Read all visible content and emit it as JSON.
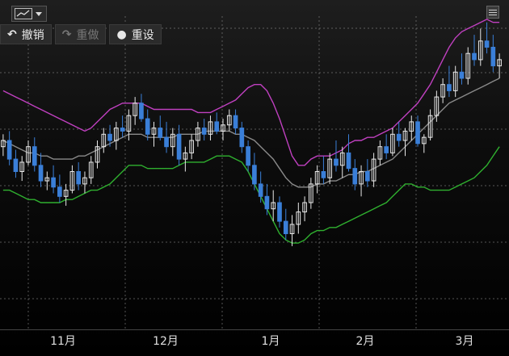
{
  "toolbar": {
    "chart_type_icon": "line-chart-icon",
    "undo_label": "撤销",
    "redo_label": "重做",
    "reset_label": "重设"
  },
  "chart_data": {
    "type": "candlestick",
    "x_tick_labels": [
      "11月",
      "12月",
      "1月",
      "2月",
      "3月"
    ],
    "grid": true,
    "indicators": [
      "Bollinger upper band",
      "Bollinger middle band",
      "Bollinger lower band"
    ],
    "colors": {
      "up_candle": "#e8e8e8",
      "down_candle": "#3a7fd8",
      "upper_band": "#c040c0",
      "middle_band": "#8a8a8a",
      "lower_band": "#2fb02f"
    },
    "price_range": [
      0,
      100
    ],
    "candles": [
      [
        58,
        62,
        55,
        60
      ],
      [
        60,
        63,
        52,
        54
      ],
      [
        54,
        57,
        48,
        50
      ],
      [
        50,
        55,
        47,
        53
      ],
      [
        53,
        60,
        52,
        58
      ],
      [
        58,
        61,
        50,
        52
      ],
      [
        52,
        56,
        45,
        47
      ],
      [
        47,
        50,
        44,
        48
      ],
      [
        48,
        52,
        43,
        45
      ],
      [
        45,
        49,
        40,
        42
      ],
      [
        42,
        46,
        39,
        44
      ],
      [
        44,
        52,
        43,
        50
      ],
      [
        50,
        53,
        44,
        46
      ],
      [
        46,
        50,
        43,
        48
      ],
      [
        48,
        55,
        46,
        53
      ],
      [
        53,
        60,
        51,
        58
      ],
      [
        58,
        64,
        56,
        62
      ],
      [
        62,
        65,
        58,
        60
      ],
      [
        60,
        66,
        57,
        64
      ],
      [
        64,
        68,
        61,
        63
      ],
      [
        63,
        70,
        60,
        68
      ],
      [
        68,
        74,
        65,
        72
      ],
      [
        72,
        75,
        66,
        67
      ],
      [
        67,
        70,
        60,
        62
      ],
      [
        62,
        66,
        58,
        64
      ],
      [
        64,
        68,
        60,
        61
      ],
      [
        61,
        66,
        56,
        58
      ],
      [
        58,
        64,
        55,
        62
      ],
      [
        62,
        65,
        52,
        54
      ],
      [
        54,
        58,
        50,
        56
      ],
      [
        56,
        62,
        54,
        60
      ],
      [
        60,
        66,
        58,
        64
      ],
      [
        64,
        67,
        60,
        62
      ],
      [
        62,
        68,
        60,
        66
      ],
      [
        66,
        69,
        62,
        63
      ],
      [
        63,
        67,
        60,
        65
      ],
      [
        65,
        70,
        63,
        68
      ],
      [
        68,
        70,
        62,
        64
      ],
      [
        64,
        66,
        56,
        58
      ],
      [
        58,
        60,
        50,
        52
      ],
      [
        52,
        56,
        44,
        46
      ],
      [
        46,
        50,
        40,
        42
      ],
      [
        42,
        46,
        36,
        38
      ],
      [
        38,
        44,
        34,
        40
      ],
      [
        40,
        42,
        32,
        34
      ],
      [
        34,
        38,
        28,
        30
      ],
      [
        30,
        36,
        26,
        33
      ],
      [
        33,
        40,
        30,
        37
      ],
      [
        37,
        42,
        34,
        40
      ],
      [
        40,
        48,
        38,
        46
      ],
      [
        46,
        52,
        43,
        50
      ],
      [
        50,
        55,
        46,
        48
      ],
      [
        48,
        56,
        46,
        54
      ],
      [
        54,
        60,
        50,
        52
      ],
      [
        52,
        58,
        48,
        56
      ],
      [
        56,
        62,
        50,
        51
      ],
      [
        51,
        54,
        44,
        46
      ],
      [
        46,
        52,
        42,
        50
      ],
      [
        50,
        54,
        45,
        47
      ],
      [
        47,
        56,
        45,
        54
      ],
      [
        54,
        60,
        52,
        58
      ],
      [
        58,
        62,
        54,
        56
      ],
      [
        56,
        64,
        55,
        62
      ],
      [
        62,
        66,
        58,
        60
      ],
      [
        60,
        64,
        55,
        63
      ],
      [
        63,
        68,
        60,
        66
      ],
      [
        66,
        68,
        58,
        59
      ],
      [
        59,
        62,
        56,
        61
      ],
      [
        61,
        70,
        60,
        68
      ],
      [
        68,
        76,
        66,
        74
      ],
      [
        74,
        80,
        72,
        78
      ],
      [
        78,
        84,
        74,
        76
      ],
      [
        76,
        84,
        74,
        82
      ],
      [
        82,
        88,
        78,
        80
      ],
      [
        80,
        90,
        78,
        88
      ],
      [
        88,
        94,
        84,
        86
      ],
      [
        86,
        96,
        84,
        92
      ],
      [
        92,
        98,
        88,
        90
      ],
      [
        90,
        94,
        82,
        84
      ],
      [
        84,
        88,
        80,
        86
      ]
    ],
    "upper_band": [
      76,
      75,
      74,
      73,
      72,
      71,
      70,
      69,
      68,
      67,
      66,
      65,
      64,
      63,
      64,
      66,
      68,
      70,
      71,
      72,
      72,
      72,
      72,
      71,
      70,
      70,
      70,
      70,
      70,
      70,
      70,
      69,
      69,
      69,
      70,
      71,
      72,
      73,
      75,
      77,
      78,
      78,
      76,
      72,
      67,
      61,
      55,
      52,
      52,
      54,
      55,
      55,
      55,
      56,
      57,
      59,
      60,
      60,
      61,
      61,
      62,
      63,
      64,
      66,
      68,
      70,
      72,
      75,
      78,
      82,
      86,
      90,
      93,
      95,
      96,
      97,
      98,
      99,
      98,
      98
    ],
    "middle_band": [
      60,
      59,
      58,
      57,
      56,
      56,
      55,
      55,
      54,
      54,
      54,
      54,
      55,
      55,
      56,
      57,
      58,
      59,
      60,
      61,
      62,
      62,
      62,
      61,
      61,
      61,
      61,
      61,
      62,
      62,
      62,
      62,
      63,
      63,
      63,
      63,
      63,
      62,
      62,
      61,
      60,
      58,
      56,
      54,
      51,
      48,
      46,
      45,
      45,
      45,
      46,
      46,
      47,
      47,
      48,
      49,
      49,
      50,
      50,
      51,
      52,
      53,
      54,
      56,
      58,
      60,
      62,
      64,
      66,
      68,
      70,
      72,
      73,
      74,
      75,
      76,
      77,
      78,
      79,
      80
    ],
    "lower_band": [
      44,
      44,
      43,
      42,
      41,
      41,
      40,
      40,
      40,
      40,
      41,
      41,
      42,
      43,
      44,
      44,
      45,
      46,
      48,
      50,
      52,
      52,
      52,
      51,
      51,
      51,
      51,
      51,
      52,
      53,
      53,
      53,
      53,
      54,
      55,
      55,
      55,
      54,
      53,
      50,
      46,
      42,
      38,
      34,
      30,
      28,
      27,
      27,
      28,
      30,
      31,
      31,
      32,
      32,
      33,
      34,
      35,
      36,
      37,
      38,
      39,
      40,
      42,
      44,
      46,
      46,
      45,
      45,
      44,
      44,
      44,
      44,
      45,
      46,
      47,
      48,
      50,
      52,
      55,
      58
    ]
  }
}
